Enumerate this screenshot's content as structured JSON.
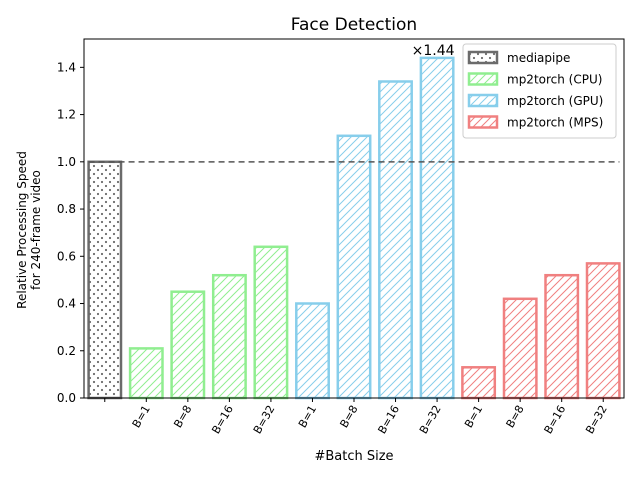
{
  "chart_data": {
    "type": "bar",
    "title": "Face Detection",
    "xlabel": "#Batch Size",
    "ylabel_lines": [
      "Relative Processing Speed",
      "for 240-frame video"
    ],
    "ylim": [
      0,
      1.52
    ],
    "yticks": [
      0.0,
      0.2,
      0.4,
      0.6,
      0.8,
      1.0,
      1.2,
      1.4
    ],
    "ytick_labels": [
      "0.0",
      "0.2",
      "0.4",
      "0.6",
      "0.8",
      "1.0",
      "1.2",
      "1.4"
    ],
    "categories": [
      "",
      "B=1",
      "B=8",
      "B=16",
      "B=32",
      "B=1",
      "B=8",
      "B=16",
      "B=32",
      "B=1",
      "B=8",
      "B=16",
      "B=32"
    ],
    "series": [
      {
        "name": "mediapipe",
        "values": [
          1.0,
          null,
          null,
          null,
          null,
          null,
          null,
          null,
          null,
          null,
          null,
          null,
          null
        ],
        "edge_color": "#6b6b6b",
        "hatch": "dots"
      },
      {
        "name": "mp2torch (CPU)",
        "values": [
          null,
          0.21,
          0.45,
          0.52,
          0.64,
          null,
          null,
          null,
          null,
          null,
          null,
          null,
          null
        ],
        "edge_color": "#90ee90",
        "hatch": "diag"
      },
      {
        "name": "mp2torch (GPU)",
        "values": [
          null,
          null,
          null,
          null,
          null,
          0.4,
          1.11,
          1.34,
          1.44,
          null,
          null,
          null,
          null
        ],
        "edge_color": "#87ceeb",
        "hatch": "diag"
      },
      {
        "name": "mp2torch (MPS)",
        "values": [
          null,
          null,
          null,
          null,
          null,
          null,
          null,
          null,
          null,
          0.13,
          0.42,
          0.52,
          0.57
        ],
        "edge_color": "#f08080",
        "hatch": "diag"
      }
    ],
    "reference_line": {
      "y": 1.0,
      "style": "dashed",
      "color": "#555555"
    },
    "annotation": {
      "text": "×1.44",
      "category_index": 8,
      "value": 1.44
    },
    "legend": {
      "placement": "top-right"
    },
    "grid": false
  }
}
